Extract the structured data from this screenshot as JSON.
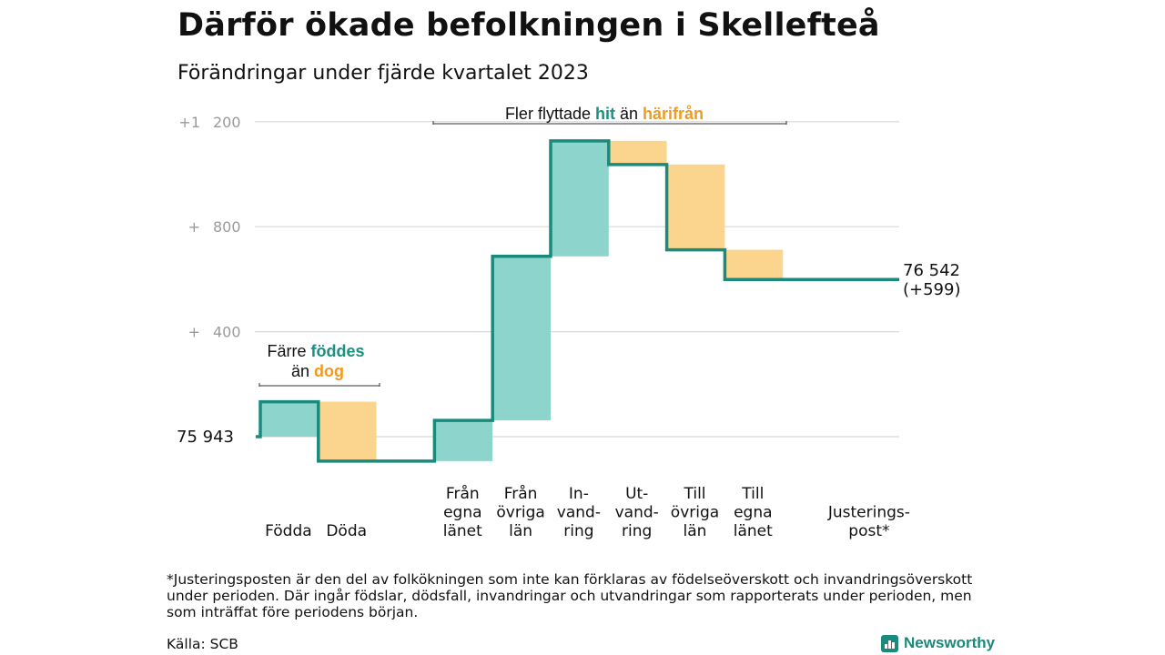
{
  "header": {
    "title": "Därför ökade befolkningen i Skellefteå",
    "subtitle": "Förändringar under fjärde kvartalet 2023"
  },
  "colors": {
    "increase": "#8dd5cc",
    "decrease": "#fbd58e",
    "line": "#1a8a7c",
    "highlight_teal": "#1a9182",
    "highlight_orange": "#f29a1d",
    "grid": "#d9d9d9",
    "tick_text": "#9a9a9a"
  },
  "chart_data": {
    "type": "waterfall",
    "base": 75943,
    "end_value": 76542,
    "end_label": "76 542",
    "end_change_label": "(+599)",
    "start_label": "75  943",
    "ylim": [
      -100,
      1300
    ],
    "yticks": [
      {
        "value": 400,
        "sign": "+",
        "number": "400"
      },
      {
        "value": 800,
        "sign": "+",
        "number": "800"
      },
      {
        "value": 1200,
        "sign": "+1",
        "number": "200"
      }
    ],
    "steps": [
      {
        "label": [
          "Födda"
        ],
        "delta": 133,
        "kind": "increase"
      },
      {
        "label": [
          "Döda"
        ],
        "delta": -226,
        "kind": "decrease"
      },
      {
        "label": [
          "Från",
          "egna",
          "länet"
        ],
        "delta": 155,
        "kind": "increase"
      },
      {
        "label": [
          "Från",
          "övriga",
          "län"
        ],
        "delta": 625,
        "kind": "increase"
      },
      {
        "label": [
          "In-",
          "vand-",
          "ring"
        ],
        "delta": 440,
        "kind": "increase"
      },
      {
        "label": [
          "Ut-",
          "vand-",
          "ring"
        ],
        "delta": -90,
        "kind": "decrease"
      },
      {
        "label": [
          "Till",
          "övriga",
          "län"
        ],
        "delta": -325,
        "kind": "decrease"
      },
      {
        "label": [
          "Till",
          "egna",
          "länet"
        ],
        "delta": -113,
        "kind": "decrease"
      },
      {
        "label": [
          "Justerings-",
          "post*"
        ],
        "delta": 0,
        "kind": "adjustment"
      }
    ],
    "annotations": {
      "births": {
        "line1_plain": "Färre ",
        "line1_bold": "föddes",
        "line2_plain": "än ",
        "line2_bold": "dog"
      },
      "migration": {
        "plain1": "Fler flyttade ",
        "bold1": "hit",
        "plain2": " än ",
        "bold2": "härifrån"
      }
    },
    "grid": true
  },
  "footer": {
    "footnote": "*Justeringsposten är den del av folkökningen som inte kan förklaras av födelseöverskott och invandringsöverskott under perioden. Där ingår födslar, dödsfall, invandringar och utvandringar som rapporterats under perioden, men som inträffat före periodens början.",
    "source": "Källa: SCB",
    "brand": "Newsworthy"
  }
}
